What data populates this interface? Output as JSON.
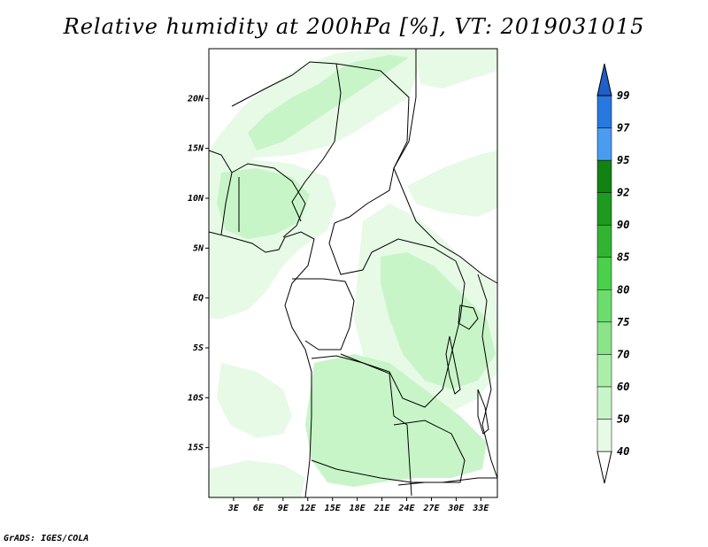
{
  "title": "Relative humidity at 200hPa [%], VT: 2019031015",
  "credit": "GrADS: IGES/COLA",
  "map": {
    "lon_range": [
      0,
      35
    ],
    "lat_range": [
      -20,
      25
    ],
    "lat_ticks": [
      {
        "value": 20,
        "label": "20N"
      },
      {
        "value": 15,
        "label": "15N"
      },
      {
        "value": 10,
        "label": "10N"
      },
      {
        "value": 5,
        "label": "5N"
      },
      {
        "value": 0,
        "label": "EQ"
      },
      {
        "value": -5,
        "label": "5S"
      },
      {
        "value": -10,
        "label": "10S"
      },
      {
        "value": -15,
        "label": "15S"
      }
    ],
    "lon_ticks": [
      {
        "value": 3,
        "label": "3E"
      },
      {
        "value": 6,
        "label": "6E"
      },
      {
        "value": 9,
        "label": "9E"
      },
      {
        "value": 12,
        "label": "12E"
      },
      {
        "value": 15,
        "label": "15E"
      },
      {
        "value": 18,
        "label": "18E"
      },
      {
        "value": 21,
        "label": "21E"
      },
      {
        "value": 24,
        "label": "24E"
      },
      {
        "value": 27,
        "label": "27E"
      },
      {
        "value": 30,
        "label": "30E"
      },
      {
        "value": 33,
        "label": "33E"
      }
    ]
  },
  "colorbar": {
    "levels": [
      "40",
      "50",
      "60",
      "70",
      "75",
      "80",
      "85",
      "90",
      "92",
      "95",
      "97",
      "99"
    ],
    "colors": [
      "#ffffff",
      "#e6fae6",
      "#c8f5c8",
      "#aaeeaa",
      "#8ae48a",
      "#6cdc6c",
      "#4ad04a",
      "#32b432",
      "#1e9a1e",
      "#128212",
      "#4a9cf0",
      "#2878e0",
      "#1e5fc8"
    ]
  },
  "colors": {
    "border": "#000000",
    "humid_light": "#e6fae6",
    "humid_mid": "#c8f5c8",
    "humid_strong": "#aaeeaa"
  }
}
